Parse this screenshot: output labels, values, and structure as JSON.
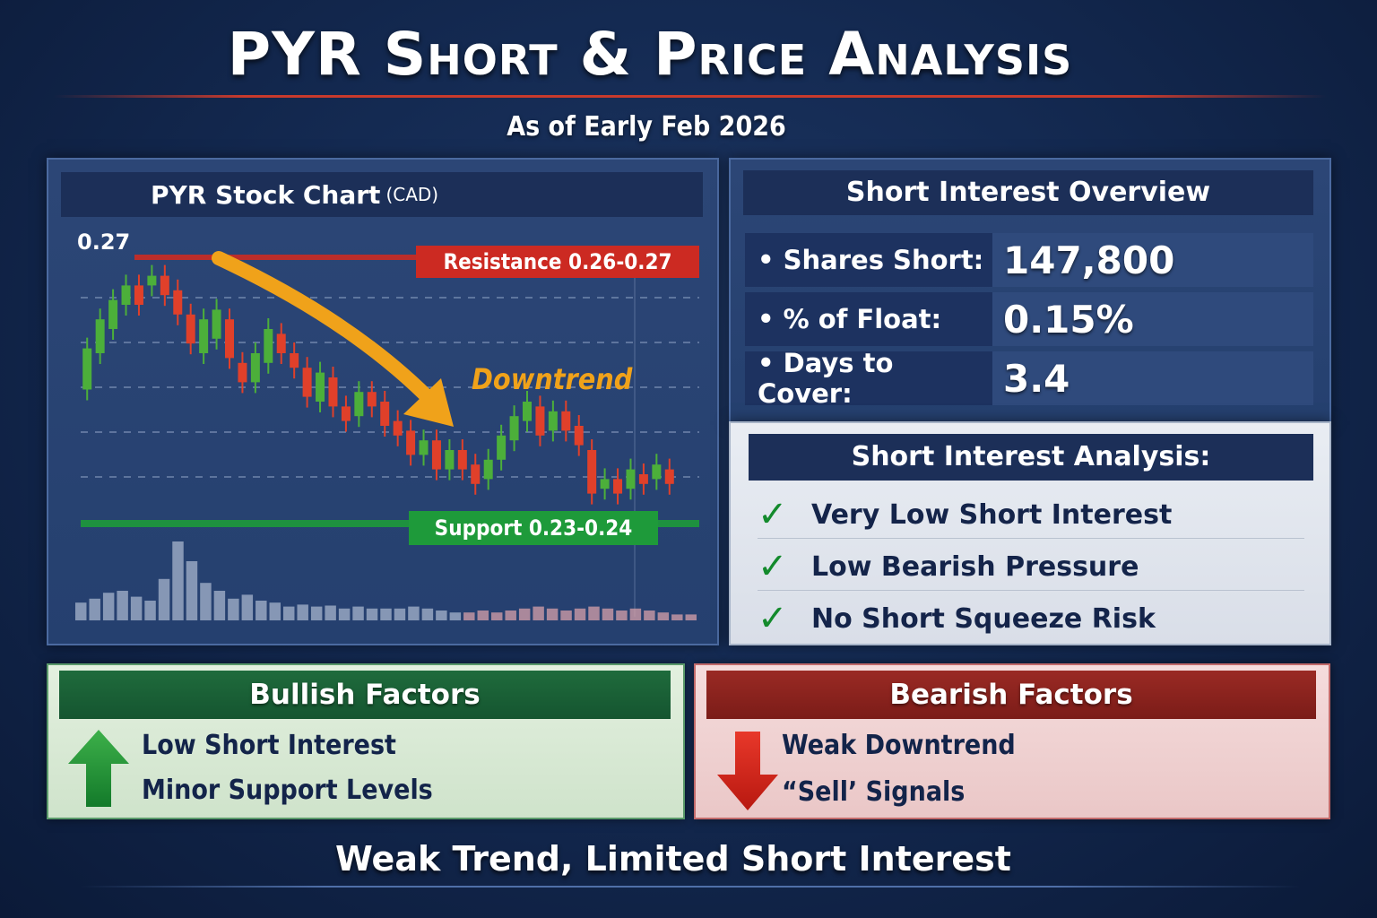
{
  "title": "PYR Short & Price Analysis",
  "subtitle": "As of Early Feb 2026",
  "chart_panel": {
    "title": "PYR Stock Chart",
    "unit": "(CAD)",
    "high_label": "0.27",
    "resistance_label": "Resistance 0.26-0.27",
    "support_label": "Support 0.23-0.24",
    "trend_label": "Downtrend",
    "colors": {
      "up": "#4caf3a",
      "down": "#e0402a",
      "resistance": "#cc2a22",
      "support": "#1e9a3a",
      "trend": "#f0a21a"
    }
  },
  "short_interest_overview": {
    "title": "Short Interest Overview",
    "rows": [
      {
        "label": "• Shares Short:",
        "value": "147,800"
      },
      {
        "label": "• % of Float:",
        "value": "0.15%"
      },
      {
        "label": "• Days to Cover:",
        "value": "3.4"
      }
    ]
  },
  "short_interest_analysis": {
    "title": "Short Interest Analysis:",
    "items": [
      {
        "check": "✓",
        "text": "Very Low Short Interest"
      },
      {
        "check": "✓",
        "text": "Low Bearish Pressure"
      },
      {
        "check": "✓",
        "text": "No Short Squeeze Risk"
      }
    ]
  },
  "bullish": {
    "title": "Bullish Factors",
    "items": [
      "Low Short Interest",
      "Minor Support Levels"
    ],
    "icon": "arrow-up-icon"
  },
  "bearish": {
    "title": "Bearish Factors",
    "items": [
      "Weak Downtrend",
      "“Sell’ Signals"
    ],
    "icon": "arrow-down-icon"
  },
  "footer": "Weak Trend, Limited Short Interest"
}
